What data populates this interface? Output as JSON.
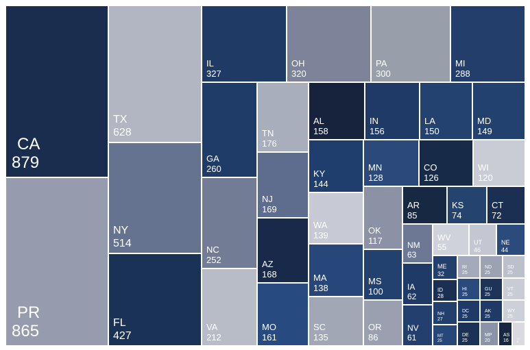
{
  "chart_data": {
    "type": "treemap",
    "title": "",
    "colors": {
      "navy_dark": "#172742",
      "navy": "#1e3a66",
      "blue": "#2a4a7e",
      "slate": "#5a6a8c",
      "grey_blue": "#8a93a8",
      "grey_light": "#b6bac6",
      "grey_pale": "#cdd0d8"
    },
    "items": [
      {
        "label": "CA",
        "value": 879,
        "color": "#1b2d4f"
      },
      {
        "label": "PR",
        "value": 865,
        "color": "#969cad"
      },
      {
        "label": "TX",
        "value": 628,
        "color": "#b2b6c3"
      },
      {
        "label": "NY",
        "value": 514,
        "color": "#667390"
      },
      {
        "label": "FL",
        "value": 427,
        "color": "#1b3257"
      },
      {
        "label": "IL",
        "value": 327,
        "color": "#1f3a64"
      },
      {
        "label": "OH",
        "value": 320,
        "color": "#7d8499"
      },
      {
        "label": "PA",
        "value": 300,
        "color": "#999eab"
      },
      {
        "label": "MI",
        "value": 288,
        "color": "#243e6b"
      },
      {
        "label": "GA",
        "value": 260,
        "color": "#1f3c69"
      },
      {
        "label": "NC",
        "value": 252,
        "color": "#737c95"
      },
      {
        "label": "VA",
        "value": 212,
        "color": "#b8bcc7"
      },
      {
        "label": "TN",
        "value": 176,
        "color": "#a9aebd"
      },
      {
        "label": "NJ",
        "value": 169,
        "color": "#5e6c8d"
      },
      {
        "label": "AZ",
        "value": 168,
        "color": "#18294a"
      },
      {
        "label": "MO",
        "value": 161,
        "color": "#274a80"
      },
      {
        "label": "AL",
        "value": 158,
        "color": "#17233d"
      },
      {
        "label": "IN",
        "value": 156,
        "color": "#1f3a66"
      },
      {
        "label": "LA",
        "value": 150,
        "color": "#24426f"
      },
      {
        "label": "MD",
        "value": 149,
        "color": "#22416f"
      },
      {
        "label": "KY",
        "value": 144,
        "color": "#1f3d6d"
      },
      {
        "label": "MN",
        "value": 128,
        "color": "#2b4a7b"
      },
      {
        "label": "CO",
        "value": 126,
        "color": "#172a48"
      },
      {
        "label": "WI",
        "value": 120,
        "color": "#c9ccd5"
      },
      {
        "label": "WA",
        "value": 139,
        "color": "#c7cad4"
      },
      {
        "label": "OK",
        "value": 117,
        "color": "#8b92a6"
      },
      {
        "label": "MA",
        "value": 138,
        "color": "#27467a"
      },
      {
        "label": "MS",
        "value": 100,
        "color": "#23416f"
      },
      {
        "label": "SC",
        "value": 135,
        "color": "#a2a7b6"
      },
      {
        "label": "OR",
        "value": 86,
        "color": "#9aa0b0"
      },
      {
        "label": "AR",
        "value": 85,
        "color": "#172842"
      },
      {
        "label": "KS",
        "value": 74,
        "color": "#24436f"
      },
      {
        "label": "CT",
        "value": 72,
        "color": "#1a2f52"
      },
      {
        "label": "NM",
        "value": 63,
        "color": "#6d7894"
      },
      {
        "label": "WV",
        "value": 55,
        "color": "#cfd2da"
      },
      {
        "label": "UT",
        "value": 46,
        "color": "#c4c7d1"
      },
      {
        "label": "NE",
        "value": 44,
        "color": "#2c4b7d"
      },
      {
        "label": "IA",
        "value": 62,
        "color": "#1f3a66"
      },
      {
        "label": "NV",
        "value": 61,
        "color": "#223f6d"
      },
      {
        "label": "ME",
        "value": 32,
        "color": "#233f6b"
      },
      {
        "label": "ID",
        "value": 28,
        "color": "#1a2f52"
      },
      {
        "label": "NH",
        "value": 27,
        "color": "#23406d"
      },
      {
        "label": "MT",
        "value": 25,
        "color": "#284779"
      },
      {
        "label": "RI",
        "value": 25,
        "color": "#a5aaba"
      },
      {
        "label": "ND",
        "value": 25,
        "color": "#9ca2b2"
      },
      {
        "label": "SD",
        "value": 25,
        "color": "#bcc0ca"
      },
      {
        "label": "HI",
        "value": 25,
        "color": "#2a4a7e"
      },
      {
        "label": "GU",
        "value": 25,
        "color": "#1d3459"
      },
      {
        "label": "VT",
        "value": 25,
        "color": "#c9ccd5"
      },
      {
        "label": "DC",
        "value": 25,
        "color": "#1f3a66"
      },
      {
        "label": "AK",
        "value": 25,
        "color": "#1f3a66"
      },
      {
        "label": "WY",
        "value": 25,
        "color": "#cdd0d8"
      },
      {
        "label": "DE",
        "value": 25,
        "color": "#1b3257"
      },
      {
        "label": "MP",
        "value": 20,
        "color": "#8a93a8"
      },
      {
        "label": "AS",
        "value": 16,
        "color": "#172742"
      },
      {
        "label": "VI",
        "value": 3,
        "color": "#d8dae0"
      }
    ]
  }
}
